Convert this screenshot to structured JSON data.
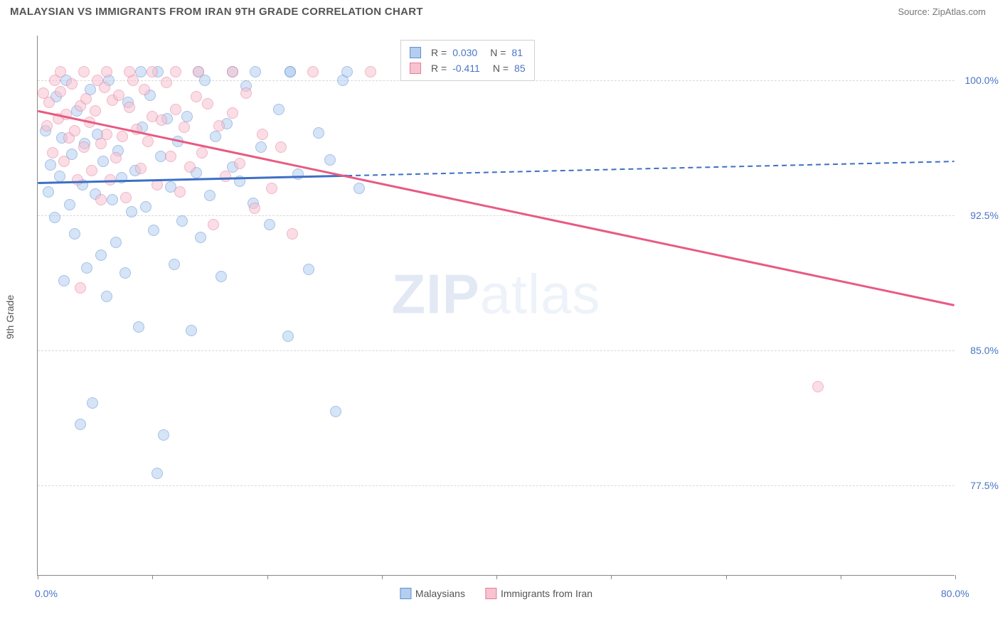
{
  "header": {
    "title": "MALAYSIAN VS IMMIGRANTS FROM IRAN 9TH GRADE CORRELATION CHART",
    "source": "Source: ZipAtlas.com"
  },
  "chart": {
    "type": "scatter",
    "y_axis_label": "9th Grade",
    "x_range": [
      0,
      80
    ],
    "y_range": [
      72.5,
      102.5
    ],
    "x_ticks": [
      0,
      10,
      20,
      30,
      40,
      50,
      60,
      70,
      80
    ],
    "x_tick_labels_shown": {
      "0": "0.0%",
      "80": "80.0%"
    },
    "y_gridlines": [
      77.5,
      85.0,
      92.5,
      100.0
    ],
    "y_tick_labels": [
      "77.5%",
      "85.0%",
      "92.5%",
      "100.0%"
    ],
    "background_color": "#ffffff",
    "grid_color": "#d8d8d8",
    "axis_color": "#888888",
    "label_color": "#4a74c5",
    "watermark": "ZIPatlas",
    "series": [
      {
        "name": "Malaysians",
        "fill_color": "#b3cef0",
        "stroke_color": "#5e8fd4",
        "fill_opacity": 0.55,
        "R": "0.030",
        "N": "81",
        "trend": {
          "color": "#3d6fc5",
          "width": 3,
          "y_at_0": 94.3,
          "y_at_80": 95.5,
          "solid_until_x": 27
        },
        "points": [
          [
            0.7,
            97.2
          ],
          [
            0.9,
            93.8
          ],
          [
            1.1,
            95.3
          ],
          [
            1.5,
            92.4
          ],
          [
            1.6,
            99.1
          ],
          [
            1.9,
            94.7
          ],
          [
            2.1,
            96.8
          ],
          [
            2.3,
            88.9
          ],
          [
            2.5,
            100.0
          ],
          [
            2.8,
            93.1
          ],
          [
            3.0,
            95.9
          ],
          [
            3.2,
            91.5
          ],
          [
            3.4,
            98.3
          ],
          [
            3.7,
            80.9
          ],
          [
            3.9,
            94.2
          ],
          [
            4.1,
            96.5
          ],
          [
            4.3,
            89.6
          ],
          [
            4.6,
            99.5
          ],
          [
            4.8,
            82.1
          ],
          [
            5.0,
            93.7
          ],
          [
            5.2,
            97.0
          ],
          [
            5.5,
            90.3
          ],
          [
            5.7,
            95.5
          ],
          [
            6.0,
            88.0
          ],
          [
            6.2,
            100.0
          ],
          [
            6.5,
            93.4
          ],
          [
            6.8,
            91.0
          ],
          [
            7.0,
            96.1
          ],
          [
            7.3,
            94.6
          ],
          [
            7.6,
            89.3
          ],
          [
            7.9,
            98.8
          ],
          [
            8.2,
            92.7
          ],
          [
            8.5,
            95.0
          ],
          [
            8.8,
            86.3
          ],
          [
            9.1,
            97.4
          ],
          [
            9.4,
            93.0
          ],
          [
            9.8,
            99.2
          ],
          [
            10.1,
            91.7
          ],
          [
            10.4,
            78.2
          ],
          [
            10.7,
            95.8
          ],
          [
            11.0,
            80.3
          ],
          [
            11.3,
            97.9
          ],
          [
            10.5,
            100.5
          ],
          [
            11.6,
            94.1
          ],
          [
            11.9,
            89.8
          ],
          [
            12.2,
            96.6
          ],
          [
            12.6,
            92.2
          ],
          [
            13.0,
            98.0
          ],
          [
            13.4,
            86.1
          ],
          [
            13.8,
            94.9
          ],
          [
            14.2,
            91.3
          ],
          [
            14.6,
            100.0
          ],
          [
            15.0,
            93.6
          ],
          [
            15.5,
            96.9
          ],
          [
            16.0,
            89.1
          ],
          [
            16.5,
            97.6
          ],
          [
            9.0,
            100.5
          ],
          [
            17.0,
            95.2
          ],
          [
            17.6,
            94.4
          ],
          [
            18.2,
            99.7
          ],
          [
            18.8,
            93.2
          ],
          [
            19.5,
            96.3
          ],
          [
            20.2,
            92.0
          ],
          [
            21.0,
            98.4
          ],
          [
            14.0,
            100.5
          ],
          [
            21.8,
            85.8
          ],
          [
            22.7,
            94.8
          ],
          [
            23.6,
            89.5
          ],
          [
            17.0,
            100.5
          ],
          [
            24.5,
            97.1
          ],
          [
            25.5,
            95.6
          ],
          [
            26.0,
            81.6
          ],
          [
            19.0,
            100.5
          ],
          [
            26.6,
            100.0
          ],
          [
            22.0,
            100.5
          ],
          [
            27.0,
            100.5
          ],
          [
            28.0,
            94.0
          ],
          [
            22.0,
            100.5
          ]
        ]
      },
      {
        "name": "Immigrants from Iran",
        "fill_color": "#f6c3d0",
        "stroke_color": "#e97a9a",
        "fill_opacity": 0.55,
        "R": "-0.411",
        "N": "85",
        "trend": {
          "color": "#e85a82",
          "width": 3,
          "y_at_0": 98.3,
          "y_at_80": 87.5,
          "solid_until_x": 80
        },
        "points": [
          [
            0.5,
            99.3
          ],
          [
            0.8,
            97.5
          ],
          [
            1.0,
            98.8
          ],
          [
            1.3,
            96.0
          ],
          [
            1.5,
            100.0
          ],
          [
            1.8,
            97.9
          ],
          [
            2.0,
            99.4
          ],
          [
            2.3,
            95.5
          ],
          [
            2.5,
            98.1
          ],
          [
            2.7,
            96.8
          ],
          [
            3.0,
            99.8
          ],
          [
            3.2,
            97.2
          ],
          [
            3.5,
            94.5
          ],
          [
            3.7,
            98.6
          ],
          [
            3.7,
            88.5
          ],
          [
            4.0,
            96.3
          ],
          [
            4.2,
            99.0
          ],
          [
            4.5,
            97.7
          ],
          [
            4.7,
            95.0
          ],
          [
            5.0,
            98.3
          ],
          [
            5.2,
            100.0
          ],
          [
            5.5,
            96.5
          ],
          [
            5.5,
            93.4
          ],
          [
            5.8,
            99.6
          ],
          [
            6.0,
            97.0
          ],
          [
            6.3,
            94.5
          ],
          [
            6.5,
            98.9
          ],
          [
            6.8,
            95.7
          ],
          [
            7.1,
            99.2
          ],
          [
            7.4,
            96.9
          ],
          [
            7.7,
            93.5
          ],
          [
            8.0,
            98.5
          ],
          [
            8.3,
            100.0
          ],
          [
            6.0,
            100.5
          ],
          [
            8.6,
            97.3
          ],
          [
            9.0,
            95.1
          ],
          [
            9.3,
            99.5
          ],
          [
            9.6,
            96.6
          ],
          [
            10.0,
            98.0
          ],
          [
            10.4,
            94.2
          ],
          [
            8.0,
            100.5
          ],
          [
            10.8,
            97.8
          ],
          [
            11.2,
            99.9
          ],
          [
            11.6,
            95.8
          ],
          [
            12.0,
            98.4
          ],
          [
            12.4,
            93.8
          ],
          [
            12.8,
            97.4
          ],
          [
            13.3,
            95.2
          ],
          [
            13.8,
            99.1
          ],
          [
            14.3,
            96.0
          ],
          [
            14.8,
            98.7
          ],
          [
            15.3,
            92.0
          ],
          [
            15.8,
            97.5
          ],
          [
            16.4,
            94.7
          ],
          [
            14.0,
            100.5
          ],
          [
            17.0,
            98.2
          ],
          [
            17.6,
            95.4
          ],
          [
            18.2,
            99.3
          ],
          [
            18.9,
            92.9
          ],
          [
            19.6,
            97.0
          ],
          [
            20.4,
            94.0
          ],
          [
            21.2,
            96.3
          ],
          [
            22.2,
            91.5
          ],
          [
            68.0,
            83.0
          ],
          [
            12.0,
            100.5
          ],
          [
            4.0,
            100.5
          ],
          [
            2.0,
            100.5
          ],
          [
            10.0,
            100.5
          ],
          [
            29.0,
            100.5
          ],
          [
            17.0,
            100.5
          ],
          [
            24.0,
            100.5
          ]
        ]
      }
    ],
    "legend_bottom": [
      {
        "label": "Malaysians",
        "fill": "#b3cef0",
        "stroke": "#5e8fd4"
      },
      {
        "label": "Immigrants from Iran",
        "fill": "#f6c3d0",
        "stroke": "#e97a9a"
      }
    ]
  }
}
